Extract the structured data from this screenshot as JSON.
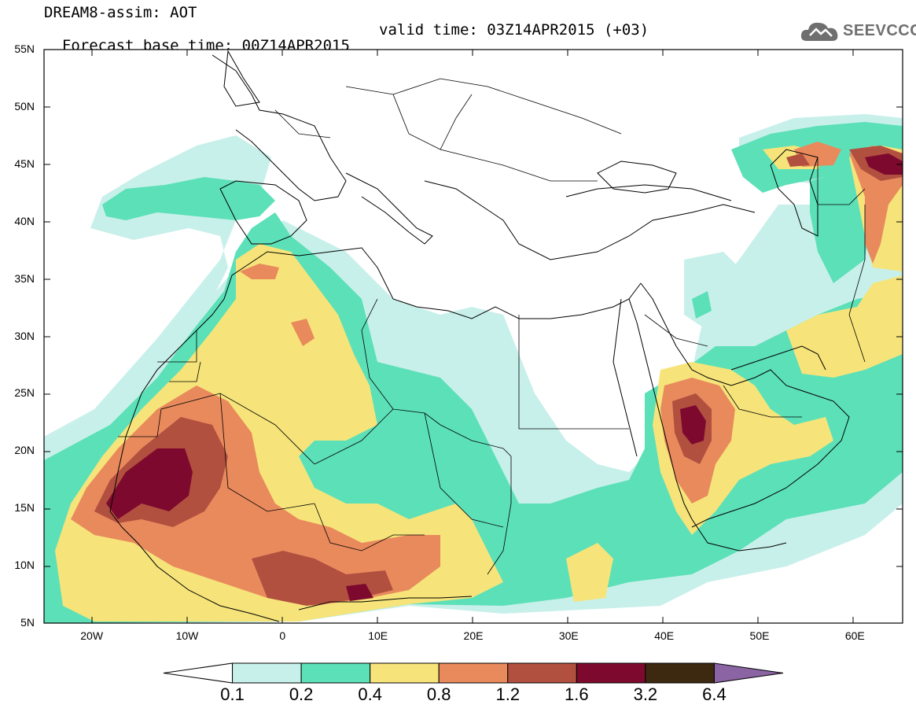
{
  "header": {
    "title_line1": "DREAM8-assim: AOT",
    "base_time": "Forecast base time: 00Z14APR2015",
    "valid_time": "valid time: 03Z14APR2015 (+03)"
  },
  "logo": {
    "text": "SEEVCCC",
    "color": "#6f6f6f",
    "icon": "cloud-icon"
  },
  "map": {
    "lat_labels": [
      "55N",
      "50N",
      "45N",
      "40N",
      "35N",
      "30N",
      "25N",
      "20N",
      "15N",
      "10N",
      "5N"
    ],
    "lon_labels": [
      "20W",
      "10W",
      "0",
      "10E",
      "20E",
      "30E",
      "40E",
      "50E",
      "60E"
    ],
    "lon_range": [
      -25,
      65
    ],
    "lat_range": [
      5,
      55
    ],
    "variable": "AOT"
  },
  "colorbar": {
    "levels": [
      "0.1",
      "0.2",
      "0.4",
      "0.8",
      "1.2",
      "1.6",
      "3.2",
      "6.4"
    ],
    "colors": [
      "#ffffff",
      "#c8f0ea",
      "#5ce0b8",
      "#f6e47a",
      "#e98a5d",
      "#b25040",
      "#7d0a2e",
      "#3d2810",
      "#8b64a3"
    ]
  }
}
